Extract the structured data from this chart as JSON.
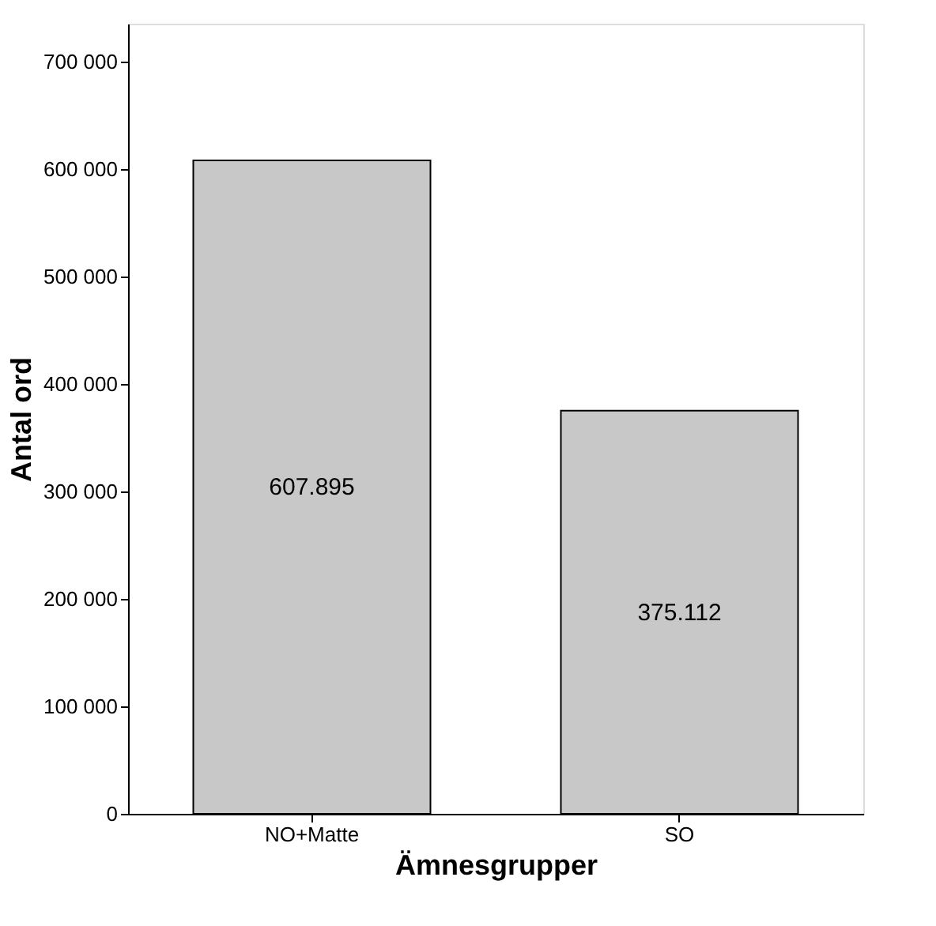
{
  "chart_data": {
    "type": "bar",
    "xlabel": "Ämnesgrupper",
    "ylabel": "Antal ord",
    "categories": [
      "NO+Matte",
      "SO"
    ],
    "values": [
      607895,
      375112
    ],
    "value_labels": [
      "607.895",
      "375.112"
    ],
    "color": "#c8c8c8",
    "ylim": [
      0,
      735000
    ],
    "yticks": [
      {
        "value": 0,
        "label": "0"
      },
      {
        "value": 100000,
        "label": "100 000"
      },
      {
        "value": 200000,
        "label": "200 000"
      },
      {
        "value": 300000,
        "label": "300 000"
      },
      {
        "value": 400000,
        "label": "400 000"
      },
      {
        "value": 500000,
        "label": "500 000"
      },
      {
        "value": 600000,
        "label": "600 000"
      },
      {
        "value": 700000,
        "label": "700 000"
      }
    ],
    "grid": false
  }
}
